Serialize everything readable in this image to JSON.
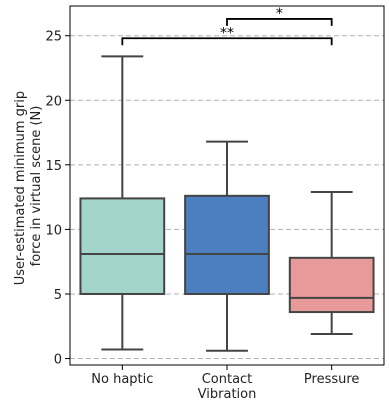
{
  "chart_data": {
    "type": "box",
    "ylabel_lines": [
      "User-estimated minimum grip",
      "force in virtual scene (N)"
    ],
    "xlabel": "",
    "ylim": [
      -0.5,
      27.3
    ],
    "yticks": [
      0,
      5,
      10,
      15,
      20,
      25
    ],
    "grid": "horizontal-dashed",
    "categories": [
      {
        "label_lines": [
          "No haptic"
        ],
        "color": "#a3d5cc"
      },
      {
        "label_lines": [
          "Contact",
          "Vibration"
        ],
        "color": "#4c7fbf"
      },
      {
        "label_lines": [
          "Pressure"
        ],
        "color": "#e89a9a"
      }
    ],
    "boxes": [
      {
        "whisker_low": 0.7,
        "q1": 5.0,
        "median": 8.1,
        "q3": 12.4,
        "whisker_high": 23.4
      },
      {
        "whisker_low": 0.6,
        "q1": 5.0,
        "median": 8.1,
        "q3": 12.6,
        "whisker_high": 16.8
      },
      {
        "whisker_low": 1.9,
        "q1": 3.6,
        "median": 4.7,
        "q3": 7.8,
        "whisker_high": 12.9
      }
    ],
    "significance": [
      {
        "from": 0,
        "to": 2,
        "y": 24.8,
        "label": "**"
      },
      {
        "from": 1,
        "to": 2,
        "y": 26.3,
        "label": "*"
      }
    ],
    "colors": {
      "edge": "#444444",
      "grid": "#b0b0b0",
      "axis": "#000000"
    }
  }
}
